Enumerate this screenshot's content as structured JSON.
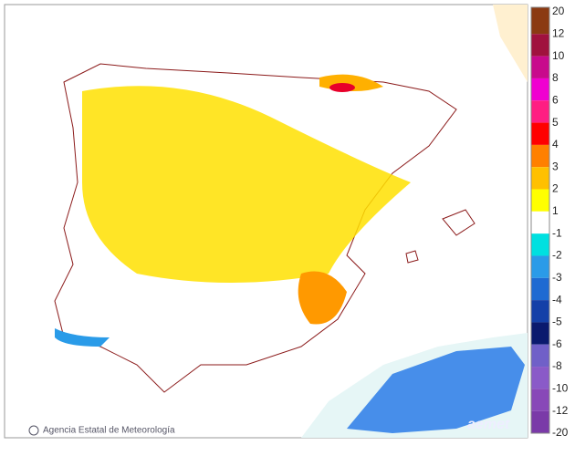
{
  "credit": "Agencia Estatal de Meteorología",
  "logo": "aemet",
  "legend": [
    {
      "label": "20",
      "color": "#8b3a12"
    },
    {
      "label": "12",
      "color": "#a0123e"
    },
    {
      "label": "10",
      "color": "#c80a8c"
    },
    {
      "label": "8",
      "color": "#f000d0"
    },
    {
      "label": "6",
      "color": "#ff1e82"
    },
    {
      "label": "5",
      "color": "#ff0000"
    },
    {
      "label": "4",
      "color": "#ff8000"
    },
    {
      "label": "3",
      "color": "#ffc000"
    },
    {
      "label": "2",
      "color": "#ffff00"
    },
    {
      "label": "1",
      "color": "#ffffff"
    },
    {
      "label": "-1",
      "color": "#00e0e0"
    },
    {
      "label": "-2",
      "color": "#2a9be8"
    },
    {
      "label": "-3",
      "color": "#1e6ad2"
    },
    {
      "label": "-4",
      "color": "#1440a8"
    },
    {
      "label": "-5",
      "color": "#0a1a6e"
    },
    {
      "label": "-6",
      "color": "#7060c8"
    },
    {
      "label": "-8",
      "color": "#8a5ac8"
    },
    {
      "label": "-10",
      "color": "#8848b8"
    },
    {
      "label": "-12",
      "color": "#7a3aa8"
    },
    {
      "label": "-20"
    }
  ]
}
